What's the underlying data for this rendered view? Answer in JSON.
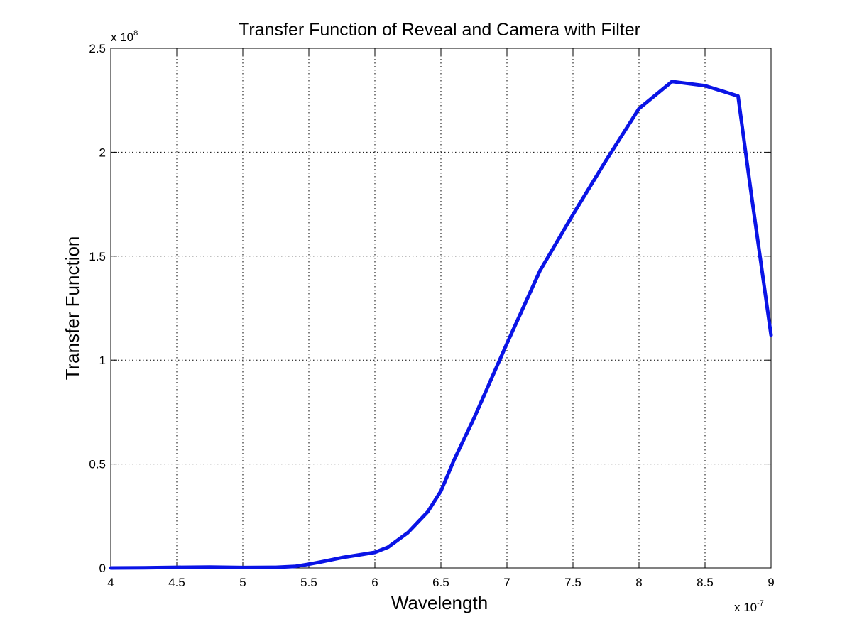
{
  "chart_data": {
    "type": "line",
    "title": "Transfer Function of Reveal and Camera with Filter",
    "xlabel": "Wavelength",
    "ylabel": "Transfer Function",
    "x_multiplier": "x 10",
    "x_exponent": "-7",
    "y_multiplier": "x 10",
    "y_exponent": "8",
    "xlim": [
      4,
      9
    ],
    "ylim": [
      0,
      2.5
    ],
    "x_ticks": [
      4,
      4.5,
      5,
      5.5,
      6,
      6.5,
      7,
      7.5,
      8,
      8.5,
      9
    ],
    "x_tick_labels": [
      "4",
      "4.5",
      "5",
      "5.5",
      "6",
      "6.5",
      "7",
      "7.5",
      "8",
      "8.5",
      "9"
    ],
    "y_ticks": [
      0,
      0.5,
      1,
      1.5,
      2,
      2.5
    ],
    "y_tick_labels": [
      "0",
      "0.5",
      "1",
      "1.5",
      "2",
      "2.5"
    ],
    "grid": true,
    "series": [
      {
        "color": "#0a14e6",
        "x": [
          4.0,
          4.25,
          4.5,
          4.75,
          5.0,
          5.25,
          5.4,
          5.5,
          5.6,
          5.75,
          5.9,
          6.0,
          6.1,
          6.25,
          6.4,
          6.5,
          6.6,
          6.75,
          7.0,
          7.25,
          7.5,
          7.75,
          8.0,
          8.25,
          8.5,
          8.75,
          8.85,
          9.0
        ],
        "y": [
          0.0,
          0.001,
          0.003,
          0.004,
          0.002,
          0.003,
          0.008,
          0.018,
          0.03,
          0.05,
          0.065,
          0.075,
          0.1,
          0.17,
          0.27,
          0.37,
          0.52,
          0.72,
          1.08,
          1.43,
          1.7,
          1.96,
          2.21,
          2.34,
          2.32,
          2.27,
          1.8,
          1.12
        ]
      }
    ]
  }
}
